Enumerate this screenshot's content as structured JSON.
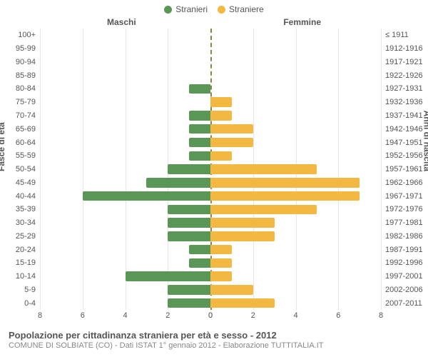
{
  "chart": {
    "type": "population-pyramid",
    "legend": [
      {
        "label": "Stranieri",
        "color": "#5a9655"
      },
      {
        "label": "Straniere",
        "color": "#f2b841"
      }
    ],
    "top_labels": {
      "male": "Maschi",
      "female": "Femmine"
    },
    "yaxis_left_title": "Fasce di età",
    "yaxis_right_title": "Anni di nascita",
    "x_max": 8,
    "xticks_left": [
      8,
      6,
      4,
      2,
      0
    ],
    "xticks_right": [
      0,
      2,
      4,
      6,
      8
    ],
    "colors": {
      "male": "#5a9655",
      "female": "#f2b841",
      "grid": "#e6e6e6",
      "midline": "#888844",
      "text": "#555555",
      "subtext": "#888888",
      "background": "#ffffff"
    },
    "age_groups": [
      "100+",
      "95-99",
      "90-94",
      "85-89",
      "80-84",
      "75-79",
      "70-74",
      "65-69",
      "60-64",
      "55-59",
      "50-54",
      "45-49",
      "40-44",
      "35-39",
      "30-34",
      "25-29",
      "20-24",
      "15-19",
      "10-14",
      "5-9",
      "0-4"
    ],
    "birth_years": [
      "≤ 1911",
      "1912-1916",
      "1917-1921",
      "1922-1926",
      "1927-1931",
      "1932-1936",
      "1937-1941",
      "1942-1946",
      "1947-1951",
      "1952-1956",
      "1957-1961",
      "1962-1966",
      "1967-1971",
      "1972-1976",
      "1977-1981",
      "1982-1986",
      "1987-1991",
      "1992-1996",
      "1997-2001",
      "2002-2006",
      "2007-2011"
    ],
    "male_values": [
      0,
      0,
      0,
      0,
      1,
      0,
      1,
      1,
      1,
      1,
      2,
      3,
      6,
      2,
      2,
      2,
      1,
      1,
      4,
      2,
      2
    ],
    "female_values": [
      0,
      0,
      0,
      0,
      0,
      1,
      1,
      2,
      2,
      1,
      5,
      7,
      7,
      5,
      3,
      3,
      1,
      1,
      1,
      2,
      3
    ]
  },
  "footer": {
    "title": "Popolazione per cittadinanza straniera per età e sesso - 2012",
    "subtitle": "COMUNE DI SOLBIATE (CO) - Dati ISTAT 1° gennaio 2012 - Elaborazione TUTTITALIA.IT"
  }
}
